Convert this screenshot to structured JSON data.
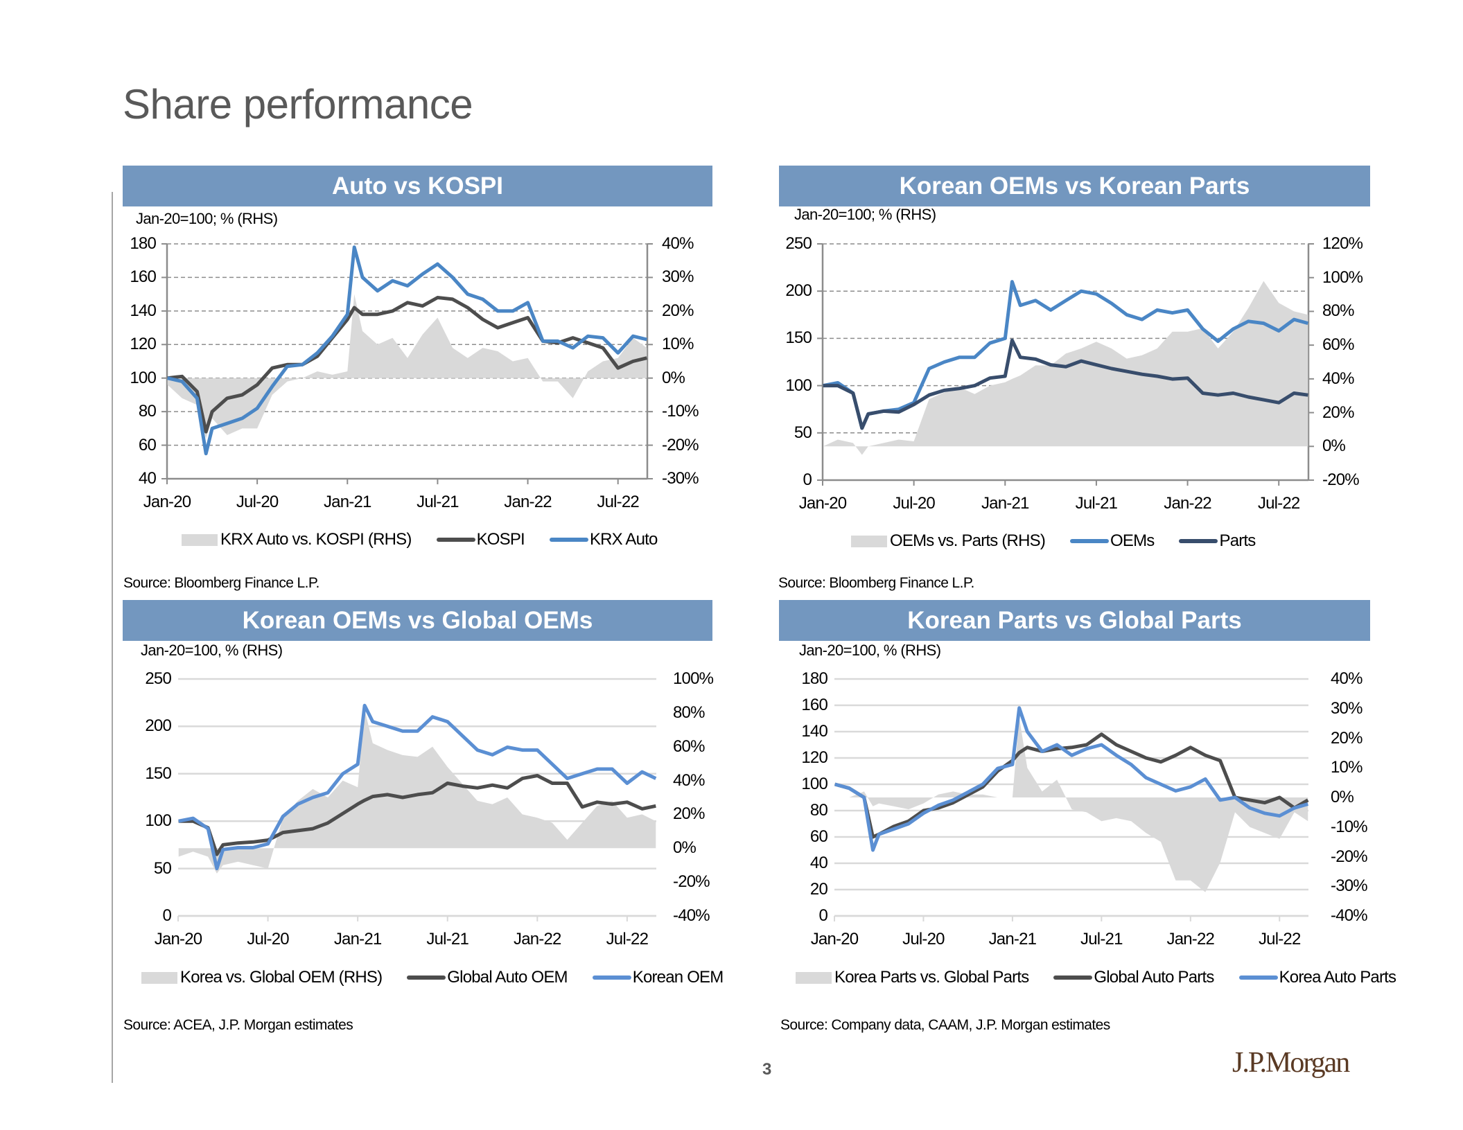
{
  "page": {
    "title": "Share performance",
    "page_number": "3",
    "logo": "J.P.Morgan"
  },
  "colors": {
    "header_bg": "#7397bf",
    "area": "#d9d9d9",
    "dark_line": "#4d4d4d",
    "blue_line": "#4a86c5",
    "navy_line": "#384d6c",
    "light_blue_line": "#5b8fd3"
  },
  "chart_data": [
    {
      "type": "line+area",
      "title": "Auto vs KOSPI",
      "subtitle": "Jan-20=100; % (RHS)",
      "source": "Source: Bloomberg Finance L.P.",
      "grid": "dashed",
      "legend_position": "bottom",
      "y_left": {
        "range": [
          40,
          180
        ],
        "ticks": [
          "180",
          "160",
          "140",
          "120",
          "100",
          "80",
          "60",
          "40"
        ]
      },
      "y_right": {
        "range": [
          -30,
          40
        ],
        "ticks": [
          "40%",
          "30%",
          "20%",
          "10%",
          "0%",
          "-10%",
          "-20%",
          "-30%"
        ]
      },
      "x_ticks": [
        {
          "label": "Jan-20",
          "date": "2020-01-01"
        },
        {
          "label": "Jul-20",
          "date": "2020-07-01"
        },
        {
          "label": "Jan-21",
          "date": "2021-01-01"
        },
        {
          "label": "Jul-21",
          "date": "2021-07-01"
        },
        {
          "label": "Jan-22",
          "date": "2022-01-01"
        },
        {
          "label": "Jul-22",
          "date": "2022-07-01"
        }
      ],
      "x": [
        "2020-01-02",
        "2020-02-01",
        "2020-03-01",
        "2020-03-19",
        "2020-04-01",
        "2020-05-01",
        "2020-06-01",
        "2020-07-01",
        "2020-08-01",
        "2020-09-01",
        "2020-10-01",
        "2020-11-01",
        "2020-12-01",
        "2021-01-01",
        "2021-01-15",
        "2021-02-01",
        "2021-03-01",
        "2021-04-01",
        "2021-05-01",
        "2021-06-01",
        "2021-07-01",
        "2021-08-01",
        "2021-09-01",
        "2021-10-01",
        "2021-11-01",
        "2021-12-01",
        "2022-01-01",
        "2022-02-01",
        "2022-03-01",
        "2022-04-01",
        "2022-05-01",
        "2022-06-01",
        "2022-07-01",
        "2022-08-01",
        "2022-08-29"
      ],
      "area": {
        "name": "KRX Auto vs. KOSPI (RHS)",
        "axis": "right",
        "values": [
          -2,
          -6,
          -8,
          -18,
          -12,
          -17,
          -15,
          -15,
          -5,
          -1,
          0,
          2,
          1,
          2,
          25,
          14,
          10,
          12,
          6,
          13,
          18,
          9,
          6,
          9,
          8,
          5,
          6,
          -1,
          -1,
          -6,
          2,
          5,
          6,
          12,
          9
        ]
      },
      "series": [
        {
          "name": "KOSPI",
          "color": "#4d4d4d",
          "values": [
            100,
            101,
            92,
            68,
            80,
            88,
            90,
            96,
            106,
            108,
            108,
            113,
            124,
            135,
            142,
            138,
            138,
            140,
            145,
            143,
            148,
            147,
            142,
            135,
            130,
            133,
            136,
            122,
            121,
            124,
            121,
            118,
            106,
            110,
            112
          ]
        },
        {
          "name": "KRX Auto",
          "color": "#4a86c5",
          "values": [
            100,
            98,
            88,
            55,
            70,
            73,
            76,
            82,
            95,
            107,
            108,
            115,
            125,
            138,
            178,
            160,
            152,
            158,
            155,
            162,
            168,
            160,
            150,
            147,
            140,
            140,
            145,
            122,
            122,
            118,
            125,
            124,
            115,
            125,
            123
          ]
        }
      ]
    },
    {
      "type": "line+area",
      "title": "Korean OEMs vs Korean Parts",
      "subtitle": "Jan-20=100; % (RHS)",
      "source": "Source: Bloomberg Finance L.P.",
      "grid": "dashed",
      "legend_position": "bottom",
      "y_left": {
        "range": [
          0,
          250
        ],
        "ticks": [
          "250",
          "200",
          "150",
          "100",
          "50",
          "0"
        ]
      },
      "y_right": {
        "range": [
          -20,
          120
        ],
        "ticks": [
          "120%",
          "100%",
          "80%",
          "60%",
          "40%",
          "20%",
          "0%",
          "-20%"
        ]
      },
      "x_ticks": [
        {
          "label": "Jan-20",
          "date": "2020-01-01"
        },
        {
          "label": "Jul-20",
          "date": "2020-07-01"
        },
        {
          "label": "Jan-21",
          "date": "2021-01-01"
        },
        {
          "label": "Jul-21",
          "date": "2021-07-01"
        },
        {
          "label": "Jan-22",
          "date": "2022-01-01"
        },
        {
          "label": "Jul-22",
          "date": "2022-07-01"
        }
      ],
      "x": [
        "2020-01-02",
        "2020-02-01",
        "2020-03-01",
        "2020-03-19",
        "2020-04-01",
        "2020-05-01",
        "2020-06-01",
        "2020-07-01",
        "2020-08-01",
        "2020-09-01",
        "2020-10-01",
        "2020-11-01",
        "2020-12-01",
        "2021-01-01",
        "2021-01-15",
        "2021-02-01",
        "2021-03-01",
        "2021-04-01",
        "2021-05-01",
        "2021-06-01",
        "2021-07-01",
        "2021-08-01",
        "2021-09-01",
        "2021-10-01",
        "2021-11-01",
        "2021-12-01",
        "2022-01-01",
        "2022-02-01",
        "2022-03-01",
        "2022-04-01",
        "2022-05-01",
        "2022-06-01",
        "2022-07-01",
        "2022-08-01",
        "2022-08-29"
      ],
      "area": {
        "name": "OEMs vs. Parts (RHS)",
        "axis": "right",
        "values": [
          0,
          4,
          2,
          -5,
          0,
          2,
          4,
          3,
          28,
          32,
          35,
          31,
          36,
          38,
          40,
          42,
          48,
          48,
          55,
          58,
          62,
          58,
          52,
          54,
          58,
          68,
          68,
          70,
          58,
          68,
          82,
          98,
          85,
          80,
          78
        ]
      },
      "series": [
        {
          "name": "OEMs",
          "color": "#4a86c5",
          "values": [
            100,
            103,
            92,
            55,
            70,
            73,
            75,
            82,
            118,
            125,
            130,
            130,
            145,
            150,
            210,
            185,
            190,
            180,
            190,
            200,
            197,
            187,
            175,
            170,
            180,
            177,
            180,
            160,
            147,
            160,
            168,
            166,
            158,
            170,
            166
          ]
        },
        {
          "name": "Parts",
          "color": "#384d6c",
          "values": [
            100,
            100,
            92,
            55,
            70,
            73,
            72,
            80,
            90,
            95,
            97,
            100,
            108,
            110,
            148,
            130,
            128,
            122,
            120,
            126,
            122,
            118,
            115,
            112,
            110,
            107,
            108,
            92,
            90,
            92,
            88,
            85,
            82,
            92,
            90
          ]
        }
      ]
    },
    {
      "type": "line+area",
      "title": "Korean OEMs vs Global OEMs",
      "subtitle": "Jan-20=100, % (RHS)",
      "source": "Source: ACEA, J.P. Morgan estimates",
      "grid": "solid",
      "legend_position": "bottom",
      "y_left": {
        "range": [
          0,
          250
        ],
        "ticks": [
          "250",
          "200",
          "150",
          "100",
          "50",
          "0"
        ]
      },
      "y_right": {
        "range": [
          -40,
          100
        ],
        "ticks": [
          "100%",
          "80%",
          "60%",
          "40%",
          "20%",
          "0%",
          "-20%",
          "-40%"
        ]
      },
      "x_ticks": [
        {
          "label": "Jan-20",
          "date": "2020-01-01"
        },
        {
          "label": "Jul-20",
          "date": "2020-07-01"
        },
        {
          "label": "Jan-21",
          "date": "2021-01-01"
        },
        {
          "label": "Jul-21",
          "date": "2021-07-01"
        },
        {
          "label": "Jan-22",
          "date": "2022-01-01"
        },
        {
          "label": "Jul-22",
          "date": "2022-07-01"
        }
      ],
      "x": [
        "2020-01-02",
        "2020-02-01",
        "2020-03-01",
        "2020-03-19",
        "2020-04-01",
        "2020-05-01",
        "2020-06-01",
        "2020-07-01",
        "2020-08-01",
        "2020-09-01",
        "2020-10-01",
        "2020-11-01",
        "2020-12-01",
        "2021-01-01",
        "2021-01-15",
        "2021-02-01",
        "2021-03-01",
        "2021-04-01",
        "2021-05-01",
        "2021-06-01",
        "2021-07-01",
        "2021-08-01",
        "2021-09-01",
        "2021-10-01",
        "2021-11-01",
        "2021-12-01",
        "2022-01-01",
        "2022-02-01",
        "2022-03-01",
        "2022-04-01",
        "2022-05-01",
        "2022-06-01",
        "2022-07-01",
        "2022-08-01",
        "2022-08-29"
      ],
      "area": {
        "name": "Korea vs. Global OEM (RHS)",
        "axis": "right",
        "values": [
          -5,
          -2,
          -5,
          -15,
          -10,
          -8,
          -10,
          -12,
          18,
          28,
          35,
          30,
          40,
          36,
          82,
          62,
          58,
          55,
          54,
          60,
          48,
          38,
          28,
          26,
          30,
          20,
          18,
          15,
          5,
          15,
          25,
          28,
          18,
          20,
          16
        ]
      },
      "series": [
        {
          "name": "Global Auto OEM",
          "color": "#4d4d4d",
          "values": [
            100,
            100,
            93,
            65,
            75,
            77,
            78,
            80,
            88,
            90,
            92,
            98,
            108,
            118,
            122,
            126,
            128,
            125,
            128,
            130,
            140,
            137,
            135,
            138,
            135,
            145,
            148,
            140,
            140,
            115,
            120,
            118,
            120,
            113,
            116
          ]
        },
        {
          "name": "Korean OEM",
          "color": "#5b8fd3",
          "values": [
            100,
            103,
            92,
            50,
            70,
            72,
            72,
            76,
            105,
            118,
            125,
            130,
            150,
            160,
            222,
            205,
            200,
            195,
            195,
            210,
            205,
            190,
            175,
            170,
            178,
            175,
            175,
            160,
            145,
            150,
            155,
            155,
            140,
            152,
            145
          ]
        }
      ]
    },
    {
      "type": "line+area",
      "title": "Korean Parts vs Global Parts",
      "subtitle": "Jan-20=100, % (RHS)",
      "source": "Source: Company data, CAAM, J.P. Morgan estimates",
      "grid": "solid",
      "legend_position": "bottom",
      "y_left": {
        "range": [
          0,
          180
        ],
        "ticks": [
          "180",
          "160",
          "140",
          "120",
          "100",
          "80",
          "60",
          "40",
          "20",
          "0"
        ]
      },
      "y_right": {
        "range": [
          -40,
          40
        ],
        "ticks": [
          "40%",
          "30%",
          "20%",
          "10%",
          "0%",
          "-10%",
          "-20%",
          "-30%",
          "-40%"
        ]
      },
      "x_ticks": [
        {
          "label": "Jan-20",
          "date": "2020-01-01"
        },
        {
          "label": "Jul-20",
          "date": "2020-07-01"
        },
        {
          "label": "Jan-21",
          "date": "2021-01-01"
        },
        {
          "label": "Jul-21",
          "date": "2021-07-01"
        },
        {
          "label": "Jan-22",
          "date": "2022-01-01"
        },
        {
          "label": "Jul-22",
          "date": "2022-07-01"
        }
      ],
      "x": [
        "2020-01-02",
        "2020-02-01",
        "2020-03-01",
        "2020-03-19",
        "2020-04-01",
        "2020-05-01",
        "2020-06-01",
        "2020-07-01",
        "2020-08-01",
        "2020-09-01",
        "2020-10-01",
        "2020-11-01",
        "2020-12-01",
        "2021-01-01",
        "2021-01-15",
        "2021-02-01",
        "2021-03-01",
        "2021-04-01",
        "2021-05-01",
        "2021-06-01",
        "2021-07-01",
        "2021-08-01",
        "2021-09-01",
        "2021-10-01",
        "2021-11-01",
        "2021-12-01",
        "2022-01-01",
        "2022-02-01",
        "2022-03-01",
        "2022-04-01",
        "2022-05-01",
        "2022-06-01",
        "2022-07-01",
        "2022-08-01",
        "2022-08-29"
      ],
      "area": {
        "name": "Korea Parts vs. Global Parts",
        "axis": "right",
        "values": [
          0,
          0,
          2,
          -3,
          -2,
          -3,
          -4,
          -2,
          1,
          2,
          1,
          1,
          0,
          0,
          27,
          10,
          2,
          6,
          -4,
          -5,
          -8,
          -7,
          -8,
          -12,
          -15,
          -28,
          -28,
          -32,
          -22,
          -5,
          -10,
          -12,
          -14,
          -5,
          -8
        ]
      },
      "series": [
        {
          "name": "Global Auto Parts",
          "color": "#4d4d4d",
          "values": [
            100,
            97,
            90,
            60,
            62,
            68,
            72,
            80,
            82,
            86,
            92,
            98,
            110,
            118,
            124,
            128,
            125,
            127,
            128,
            130,
            138,
            130,
            125,
            120,
            117,
            122,
            128,
            122,
            118,
            90,
            88,
            86,
            90,
            82,
            88
          ]
        },
        {
          "name": "Korea Auto Parts",
          "color": "#5b8fd3",
          "values": [
            100,
            97,
            90,
            50,
            62,
            66,
            70,
            78,
            84,
            88,
            94,
            100,
            112,
            115,
            158,
            140,
            125,
            130,
            122,
            127,
            130,
            122,
            115,
            105,
            100,
            95,
            98,
            104,
            88,
            90,
            82,
            78,
            76,
            82,
            85
          ]
        }
      ]
    }
  ]
}
